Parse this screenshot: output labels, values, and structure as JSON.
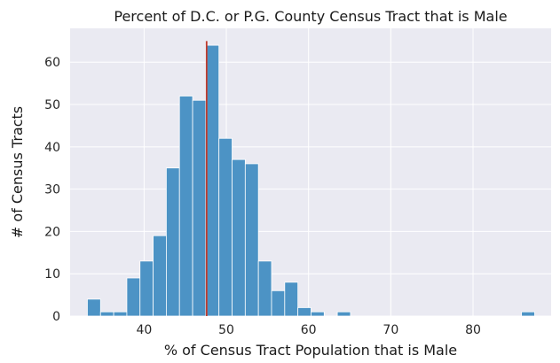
{
  "chart_data": {
    "type": "histogram",
    "title": "Percent of D.C. or P.G. County Census Tract that is Male",
    "xlabel": "% of Census Tract Population that is Male",
    "ylabel": "# of Census Tracts",
    "xlim": [
      31.0,
      89.5
    ],
    "ylim": [
      0,
      68
    ],
    "x_ticks": [
      40,
      50,
      60,
      70,
      80
    ],
    "y_ticks": [
      0,
      10,
      20,
      30,
      40,
      50,
      60
    ],
    "bin_width": 1.6,
    "bins": [
      {
        "x0": 33.1,
        "count": 4
      },
      {
        "x0": 34.7,
        "count": 1
      },
      {
        "x0": 36.3,
        "count": 1
      },
      {
        "x0": 37.9,
        "count": 9
      },
      {
        "x0": 39.5,
        "count": 13
      },
      {
        "x0": 41.1,
        "count": 19
      },
      {
        "x0": 42.7,
        "count": 35
      },
      {
        "x0": 44.3,
        "count": 52
      },
      {
        "x0": 45.9,
        "count": 51
      },
      {
        "x0": 47.5,
        "count": 64
      },
      {
        "x0": 49.1,
        "count": 42
      },
      {
        "x0": 50.7,
        "count": 37
      },
      {
        "x0": 52.3,
        "count": 36
      },
      {
        "x0": 53.9,
        "count": 13
      },
      {
        "x0": 55.5,
        "count": 6
      },
      {
        "x0": 57.1,
        "count": 8
      },
      {
        "x0": 58.7,
        "count": 2
      },
      {
        "x0": 60.3,
        "count": 1
      },
      {
        "x0": 63.5,
        "count": 1
      },
      {
        "x0": 85.9,
        "count": 1
      }
    ],
    "reference_line": {
      "x": 47.6,
      "color": "#c0392b"
    },
    "bar_color": "#4c93c5",
    "background_color": "#eaeaf2",
    "grid": true
  }
}
